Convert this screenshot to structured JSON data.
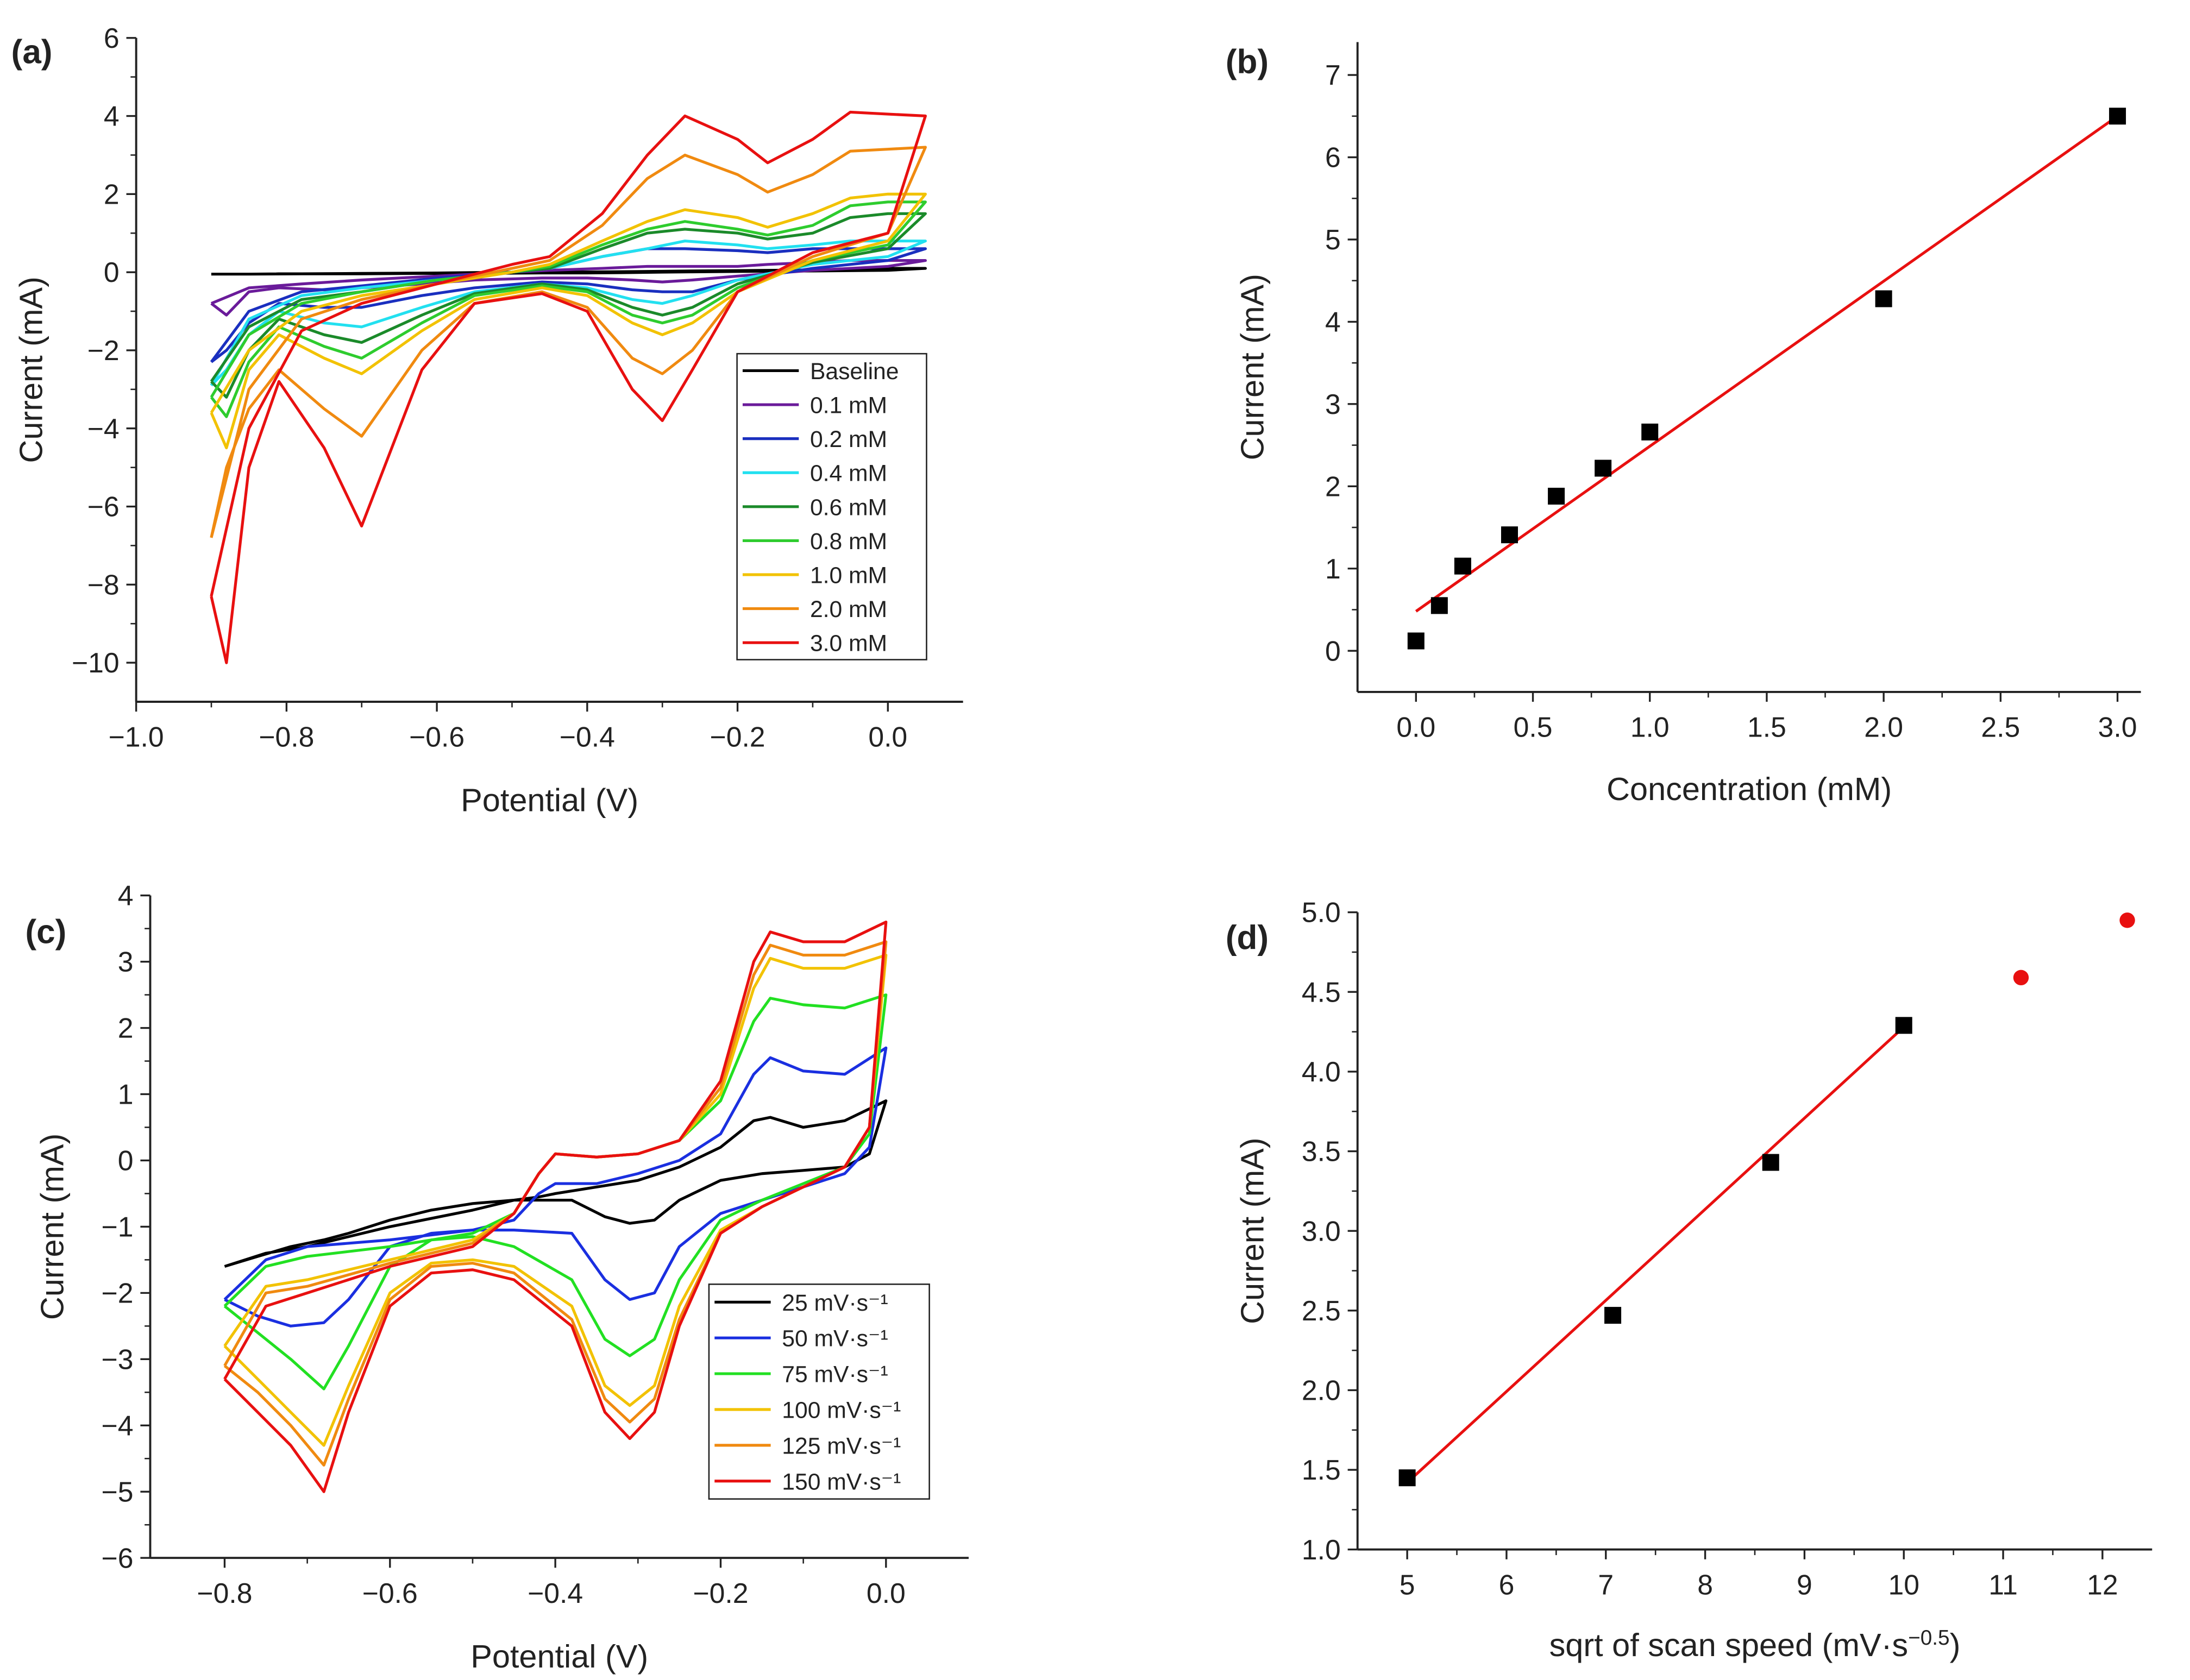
{
  "chart_data": [
    {
      "panel": "(a)",
      "type": "line",
      "xlabel": "Potential (V)",
      "ylabel": "Current (mA)",
      "xlim": [
        -1.0,
        0.1
      ],
      "ylim": [
        -11,
        6
      ],
      "xticks": [
        -1.0,
        -0.8,
        -0.6,
        -0.4,
        -0.2,
        0.0
      ],
      "xtick_labels": [
        "−1.0",
        "−0.8",
        "−0.6",
        "−0.4",
        "−0.2",
        "0.0"
      ],
      "yticks": [
        6,
        4,
        2,
        0,
        -2,
        -4,
        -6,
        -8,
        -10
      ],
      "ytick_labels": [
        "6",
        "4",
        "2",
        "0",
        "−2",
        "−4",
        "−6",
        "−8",
        "−10"
      ],
      "legend": "bottom-right",
      "x_forward": [
        -0.9,
        -0.85,
        -0.78,
        -0.7,
        -0.6,
        -0.5,
        -0.45,
        -0.38,
        -0.32,
        -0.27,
        -0.2,
        -0.16,
        -0.1,
        -0.05,
        0.0,
        0.05
      ],
      "x_reverse": [
        0.05,
        0.0,
        -0.1,
        -0.2,
        -0.26,
        -0.3,
        -0.34,
        -0.4,
        -0.46,
        -0.55,
        -0.62,
        -0.7,
        -0.75,
        -0.81,
        -0.85,
        -0.88,
        -0.9
      ],
      "series": [
        {
          "name": "Baseline",
          "color": "#000000",
          "forward": [
            -0.05,
            -0.05,
            -0.04,
            -0.03,
            -0.02,
            0,
            0,
            0.01,
            0.02,
            0.03,
            0.04,
            0.05,
            0.06,
            0.08,
            0.1,
            0.1
          ],
          "reverse": [
            0.1,
            0.05,
            0.03,
            0.02,
            0.01,
            0,
            -0.01,
            -0.02,
            -0.02,
            -0.03,
            -0.03,
            -0.04,
            -0.04,
            -0.04,
            -0.05,
            -0.05,
            -0.05
          ]
        },
        {
          "name": "0.1 mM",
          "color": "#6a1b9a",
          "forward": [
            -0.8,
            -0.4,
            -0.3,
            -0.2,
            -0.1,
            0,
            0.05,
            0.1,
            0.15,
            0.15,
            0.15,
            0.2,
            0.25,
            0.3,
            0.3,
            0.3
          ],
          "reverse": [
            0.3,
            0.15,
            0.05,
            -0.1,
            -0.2,
            -0.25,
            -0.2,
            -0.15,
            -0.15,
            -0.2,
            -0.3,
            -0.4,
            -0.45,
            -0.4,
            -0.5,
            -1.1,
            -0.8
          ]
        },
        {
          "name": "0.2 mM",
          "color": "#1a2fbf",
          "forward": [
            -2.3,
            -1.0,
            -0.5,
            -0.35,
            -0.15,
            0,
            0.1,
            0.4,
            0.6,
            0.6,
            0.55,
            0.5,
            0.6,
            0.6,
            0.6,
            0.6
          ],
          "reverse": [
            0.6,
            0.3,
            0.1,
            -0.2,
            -0.5,
            -0.5,
            -0.45,
            -0.3,
            -0.25,
            -0.4,
            -0.6,
            -0.9,
            -0.9,
            -0.8,
            -1.3,
            -2.0,
            -2.3
          ]
        },
        {
          "name": "0.4 mM",
          "color": "#22e0f0",
          "forward": [
            -2.9,
            -1.2,
            -0.6,
            -0.4,
            -0.2,
            0,
            0.1,
            0.4,
            0.6,
            0.8,
            0.7,
            0.6,
            0.7,
            0.8,
            0.8,
            0.8
          ],
          "reverse": [
            0.8,
            0.4,
            0.2,
            -0.2,
            -0.6,
            -0.8,
            -0.7,
            -0.4,
            -0.3,
            -0.5,
            -0.9,
            -1.4,
            -1.3,
            -1.0,
            -1.6,
            -2.5,
            -2.9
          ]
        },
        {
          "name": "0.6 mM",
          "color": "#1b8a2a",
          "forward": [
            -2.8,
            -1.4,
            -0.7,
            -0.5,
            -0.2,
            0,
            0.1,
            0.6,
            1.0,
            1.1,
            1.0,
            0.85,
            1.0,
            1.4,
            1.5,
            1.5
          ],
          "reverse": [
            1.5,
            0.6,
            0.25,
            -0.3,
            -0.9,
            -1.1,
            -0.9,
            -0.45,
            -0.3,
            -0.55,
            -1.1,
            -1.8,
            -1.6,
            -1.2,
            -2.0,
            -3.2,
            -2.8
          ]
        },
        {
          "name": "0.8 mM",
          "color": "#2ecc2e",
          "forward": [
            -3.2,
            -1.6,
            -0.8,
            -0.5,
            -0.2,
            0,
            0.15,
            0.7,
            1.1,
            1.3,
            1.1,
            0.95,
            1.2,
            1.7,
            1.8,
            1.8
          ],
          "reverse": [
            1.8,
            0.7,
            0.3,
            -0.4,
            -1.1,
            -1.3,
            -1.1,
            -0.5,
            -0.35,
            -0.6,
            -1.3,
            -2.2,
            -1.9,
            -1.4,
            -2.3,
            -3.7,
            -3.2
          ]
        },
        {
          "name": "1.0 mM",
          "color": "#f2c200",
          "forward": [
            -3.6,
            -2.0,
            -1.0,
            -0.6,
            -0.3,
            0,
            0.2,
            0.8,
            1.3,
            1.6,
            1.4,
            1.15,
            1.5,
            1.9,
            2.0,
            2.0
          ],
          "reverse": [
            2.0,
            0.8,
            0.3,
            -0.5,
            -1.3,
            -1.6,
            -1.3,
            -0.6,
            -0.4,
            -0.7,
            -1.5,
            -2.6,
            -2.2,
            -1.6,
            -2.5,
            -4.5,
            -3.6
          ]
        },
        {
          "name": "2.0 mM",
          "color": "#f08a10",
          "forward": [
            -6.8,
            -3.0,
            -1.2,
            -0.7,
            -0.3,
            0.1,
            0.3,
            1.2,
            2.4,
            3.0,
            2.5,
            2.05,
            2.5,
            3.1,
            3.15,
            3.2
          ],
          "reverse": [
            3.2,
            1.0,
            0.4,
            -0.5,
            -2.0,
            -2.6,
            -2.2,
            -0.9,
            -0.5,
            -0.8,
            -2.0,
            -4.2,
            -3.5,
            -2.5,
            -3.5,
            -5.0,
            -6.8
          ]
        },
        {
          "name": "3.0 mM",
          "color": "#e81010",
          "forward": [
            -8.3,
            -4.0,
            -1.5,
            -0.8,
            -0.3,
            0.2,
            0.4,
            1.5,
            3.0,
            4.0,
            3.4,
            2.8,
            3.4,
            4.1,
            4.05,
            4.0
          ],
          "reverse": [
            4.0,
            1.0,
            0.5,
            -0.5,
            -2.5,
            -3.8,
            -3.0,
            -1.0,
            -0.55,
            -0.8,
            -2.5,
            -6.5,
            -4.5,
            -2.8,
            -5.0,
            -10.0,
            -8.3
          ]
        }
      ]
    },
    {
      "panel": "(b)",
      "type": "scatter",
      "xlabel": "Concentration (mM)",
      "ylabel": "Current (mA)",
      "xlim": [
        -0.25,
        3.1
      ],
      "ylim": [
        -0.5,
        7.4
      ],
      "xticks": [
        0,
        0.5,
        1,
        1.5,
        2,
        2.5,
        3
      ],
      "xtick_labels": [
        "0.0",
        "0.5",
        "1.0",
        "1.5",
        "2.0",
        "2.5",
        "3.0"
      ],
      "yticks": [
        0,
        1,
        2,
        3,
        4,
        5,
        6,
        7
      ],
      "ytick_labels": [
        "0",
        "1",
        "2",
        "3",
        "4",
        "5",
        "6",
        "7"
      ],
      "points": [
        {
          "x": 0,
          "y": 0.12
        },
        {
          "x": 0.1,
          "y": 0.55
        },
        {
          "x": 0.2,
          "y": 1.03
        },
        {
          "x": 0.4,
          "y": 1.41
        },
        {
          "x": 0.6,
          "y": 1.88
        },
        {
          "x": 0.8,
          "y": 2.22
        },
        {
          "x": 1.0,
          "y": 2.66
        },
        {
          "x": 2.0,
          "y": 4.28
        },
        {
          "x": 3.0,
          "y": 6.5
        }
      ],
      "fit": {
        "x": [
          0,
          3
        ],
        "y": [
          0.48,
          6.5
        ],
        "color": "#e81010"
      }
    },
    {
      "panel": "(c)",
      "type": "line",
      "xlabel": "Potential (V)",
      "ylabel": "Current (mA)",
      "xlim": [
        -0.89,
        0.1
      ],
      "ylim": [
        -6,
        4
      ],
      "xticks": [
        -0.8,
        -0.6,
        -0.4,
        -0.2,
        0.0
      ],
      "xtick_labels": [
        "−0.8",
        "−0.6",
        "−0.4",
        "−0.2",
        "0.0"
      ],
      "yticks": [
        4,
        3,
        2,
        1,
        0,
        -1,
        -2,
        -3,
        -4,
        -5,
        -6
      ],
      "ytick_labels": [
        "4",
        "3",
        "2",
        "1",
        "0",
        "−1",
        "−2",
        "−3",
        "−4",
        "−5",
        "−6"
      ],
      "legend": "bottom-right",
      "x_forward": [
        -0.8,
        -0.75,
        -0.7,
        -0.6,
        -0.5,
        -0.45,
        -0.42,
        -0.4,
        -0.35,
        -0.3,
        -0.25,
        -0.2,
        -0.16,
        -0.14,
        -0.1,
        -0.05,
        0.0
      ],
      "x_reverse": [
        0.0,
        -0.02,
        -0.05,
        -0.1,
        -0.15,
        -0.2,
        -0.25,
        -0.28,
        -0.31,
        -0.34,
        -0.38,
        -0.45,
        -0.5,
        -0.55,
        -0.6,
        -0.65,
        -0.68,
        -0.72,
        -0.76,
        -0.8
      ],
      "series": [
        {
          "name": "25 mV·s⁻¹",
          "color": "#000000",
          "forward": [
            -1.6,
            -1.4,
            -1.3,
            -1.0,
            -0.75,
            -0.6,
            -0.55,
            -0.5,
            -0.4,
            -0.3,
            -0.1,
            0.2,
            0.6,
            0.65,
            0.5,
            0.6,
            0.9
          ],
          "reverse": [
            0.9,
            0.1,
            -0.1,
            -0.15,
            -0.2,
            -0.3,
            -0.6,
            -0.9,
            -0.95,
            -0.85,
            -0.6,
            -0.6,
            -0.65,
            -0.75,
            -0.9,
            -1.1,
            -1.2,
            -1.3,
            -1.45,
            -1.6
          ]
        },
        {
          "name": "50 mV·s⁻¹",
          "color": "#1a2fe0",
          "forward": [
            -2.1,
            -1.5,
            -1.3,
            -1.2,
            -1.05,
            -0.9,
            -0.5,
            -0.35,
            -0.35,
            -0.2,
            0,
            0.4,
            1.3,
            1.55,
            1.35,
            1.3,
            1.7
          ],
          "reverse": [
            1.7,
            0.2,
            -0.2,
            -0.4,
            -0.6,
            -0.8,
            -1.3,
            -2.0,
            -2.1,
            -1.8,
            -1.1,
            -1.05,
            -1.05,
            -1.1,
            -1.3,
            -2.1,
            -2.45,
            -2.5,
            -2.35,
            -2.1
          ]
        },
        {
          "name": "75 mV·s⁻¹",
          "color": "#22e022",
          "forward": [
            -2.2,
            -1.6,
            -1.45,
            -1.3,
            -1.1,
            -0.8,
            -0.2,
            0.1,
            0.05,
            0.1,
            0.3,
            0.9,
            2.1,
            2.45,
            2.35,
            2.3,
            2.5
          ],
          "reverse": [
            2.5,
            0.4,
            -0.1,
            -0.35,
            -0.6,
            -0.9,
            -1.8,
            -2.7,
            -2.95,
            -2.7,
            -1.8,
            -1.3,
            -1.15,
            -1.2,
            -1.6,
            -2.8,
            -3.45,
            -3.0,
            -2.6,
            -2.2
          ]
        },
        {
          "name": "100 mV·s⁻¹",
          "color": "#f2c200",
          "forward": [
            -2.8,
            -1.9,
            -1.8,
            -1.5,
            -1.2,
            -0.8,
            -0.2,
            0.1,
            0.05,
            0.1,
            0.3,
            1.0,
            2.6,
            3.05,
            2.9,
            2.9,
            3.1
          ],
          "reverse": [
            3.1,
            0.5,
            -0.1,
            -0.4,
            -0.7,
            -1.05,
            -2.2,
            -3.4,
            -3.7,
            -3.4,
            -2.2,
            -1.6,
            -1.5,
            -1.55,
            -2.0,
            -3.4,
            -4.3,
            -3.8,
            -3.3,
            -2.8
          ]
        },
        {
          "name": "125 mV·s⁻¹",
          "color": "#f08a10",
          "forward": [
            -3.1,
            -2.0,
            -1.9,
            -1.55,
            -1.25,
            -0.8,
            -0.2,
            0.1,
            0.05,
            0.1,
            0.3,
            1.1,
            2.8,
            3.25,
            3.1,
            3.1,
            3.3
          ],
          "reverse": [
            3.3,
            0.5,
            -0.1,
            -0.4,
            -0.7,
            -1.1,
            -2.4,
            -3.6,
            -3.95,
            -3.6,
            -2.4,
            -1.7,
            -1.55,
            -1.6,
            -2.1,
            -3.6,
            -4.6,
            -4.0,
            -3.5,
            -3.1
          ]
        },
        {
          "name": "150 mV·s⁻¹",
          "color": "#e81010",
          "forward": [
            -3.3,
            -2.2,
            -2.0,
            -1.6,
            -1.3,
            -0.8,
            -0.2,
            0.1,
            0.05,
            0.1,
            0.3,
            1.2,
            3.0,
            3.45,
            3.3,
            3.3,
            3.6
          ],
          "reverse": [
            3.6,
            0.5,
            -0.1,
            -0.4,
            -0.7,
            -1.1,
            -2.5,
            -3.8,
            -4.2,
            -3.8,
            -2.5,
            -1.8,
            -1.65,
            -1.7,
            -2.2,
            -3.8,
            -5.0,
            -4.3,
            -3.8,
            -3.3
          ]
        }
      ]
    },
    {
      "panel": "(d)",
      "type": "scatter",
      "xlabel": "sqrt of scan speed (mV·s",
      "xlabel_sup": "−0.5",
      "xlabel_end": ")",
      "ylabel": "Current (mA)",
      "xlim": [
        4.5,
        12.5
      ],
      "ylim": [
        1.0,
        5.0
      ],
      "xticks": [
        5,
        6,
        7,
        8,
        9,
        10,
        11,
        12
      ],
      "xtick_labels": [
        "5",
        "6",
        "7",
        "8",
        "9",
        "10",
        "11",
        "12"
      ],
      "yticks": [
        1,
        1.5,
        2,
        2.5,
        3,
        3.5,
        4,
        4.5,
        5
      ],
      "ytick_labels": [
        "1.0",
        "1.5",
        "2.0",
        "2.5",
        "3.0",
        "3.5",
        "4.0",
        "4.5",
        "5.0"
      ],
      "points": [
        {
          "x": 5,
          "y": 1.45
        },
        {
          "x": 7.07,
          "y": 2.47
        },
        {
          "x": 8.66,
          "y": 3.43
        },
        {
          "x": 10,
          "y": 4.29
        }
      ],
      "outliers": [
        {
          "x": 11.18,
          "y": 4.59
        },
        {
          "x": 12.25,
          "y": 4.95
        }
      ],
      "outlier_color": "#e81010",
      "fit": {
        "x": [
          5,
          10
        ],
        "y": [
          1.42,
          4.28
        ],
        "color": "#e81010"
      }
    }
  ]
}
